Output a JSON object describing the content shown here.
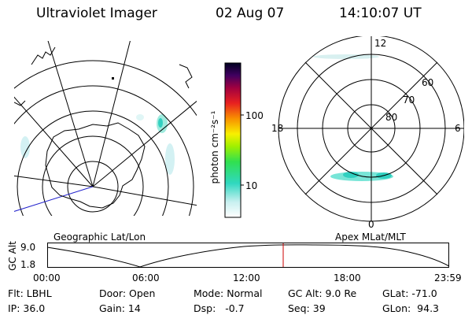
{
  "header": {
    "title": "Ultraviolet Imager",
    "date": "02 Aug 07",
    "time": "14:10:07 UT"
  },
  "geo_panel": {
    "label": "Geographic Lat/Lon"
  },
  "mag_panel": {
    "label": "Apex MLat/MLT",
    "mlt_labels": {
      "top": "12",
      "bottom": "0",
      "left": "18",
      "right": "6"
    },
    "lat_labels": [
      "60",
      "70",
      "80"
    ]
  },
  "colorbar": {
    "unit_label": "photon cm⁻²s⁻¹",
    "ticks": [
      "100",
      "10"
    ]
  },
  "alt_plot": {
    "ylabel": "GC Alt",
    "y_ticks": [
      "9.0",
      "1.8"
    ],
    "x_ticks": [
      "00:00",
      "06:00",
      "12:00",
      "18:00",
      "23:59"
    ],
    "marker_color": "#cc0000"
  },
  "footer": {
    "flt": "Flt: LBHL",
    "ip": "IP: 36.0",
    "door": "Door: Open",
    "gain": "Gain: 14",
    "mode": "Mode: Normal",
    "dsp": "Dsp:   -0.7",
    "gcalt": "GC Alt: 9.0 Re",
    "seq": "Seq: 39",
    "glat": "GLat: -71.0",
    "glon": "GLon:  94.3"
  }
}
